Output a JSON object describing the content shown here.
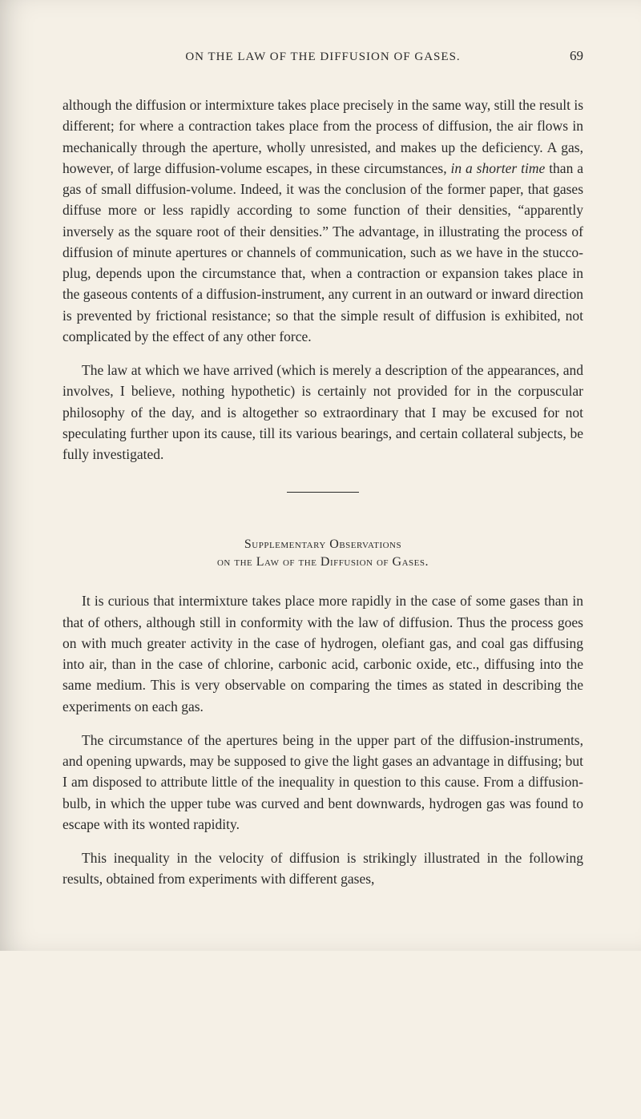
{
  "page": {
    "header_title": "ON THE LAW OF THE DIFFUSION OF GASES.",
    "page_number": "69",
    "paragraph1_part1": "although the diffusion or intermixture takes place precisely in the same way, still the result is different; for where a contraction takes place from the process of diffusion, the air flows in mechanically through the aperture, wholly unresisted, and makes up the deficiency. A gas, however, of large diffusion-volume escapes, in these circumstances, ",
    "paragraph1_italic1": "in a shorter time",
    "paragraph1_part2": " than a gas of small diffusion-volume. Indeed, it was the conclusion of the former paper, that gases diffuse more or less rapidly according to some function of their densities, “apparently inversely as the square root of their densities.” The advantage, in illustrating the process of diffusion of minute apertures or channels of communication, such as we have in the stucco-plug, depends upon the circumstance that, when a contraction or expansion takes place in the gaseous contents of a diffusion-instrument, any current in an outward or inward direction is prevented by frictional resistance; so that the simple result of diffusion is exhibited, not complicated by the effect of any other force.",
    "paragraph2": "The law at which we have arrived (which is merely a description of the appearances, and involves, I believe, nothing hypothetic) is certainly not provided for in the corpuscular philosophy of the day, and is altogether so extraordinary that I may be excused for not speculating further upon its cause, till its various bearings, and certain collateral subjects, be fully investigated.",
    "section_heading": "Supplementary Observations",
    "section_subheading": "on the Law of the Diffusion of Gases.",
    "paragraph3": "It is curious that intermixture takes place more rapidly in the case of some gases than in that of others, although still in conformity with the law of diffusion. Thus the process goes on with much greater activity in the case of hydrogen, olefiant gas, and coal gas diffusing into air, than in the case of chlorine, carbonic acid, carbonic oxide, etc., diffusing into the same medium. This is very observable on comparing the times as stated in describing the experiments on each gas.",
    "paragraph4": "The circumstance of the apertures being in the upper part of the diffusion-instruments, and opening upwards, may be supposed to give the light gases an advantage in diffusing; but I am disposed to attribute little of the inequality in question to this cause. From a diffusion-bulb, in which the upper tube was curved and bent downwards, hydrogen gas was found to escape with its wonted rapidity.",
    "paragraph5": "This inequality in the velocity of diffusion is strikingly illustrated in the following results, obtained from experiments with different gases,"
  },
  "styling": {
    "background_color": "#f5f0e6",
    "text_color": "#2a2a2a",
    "body_fontsize": 17.5,
    "header_fontsize": 15,
    "line_height": 1.5
  }
}
